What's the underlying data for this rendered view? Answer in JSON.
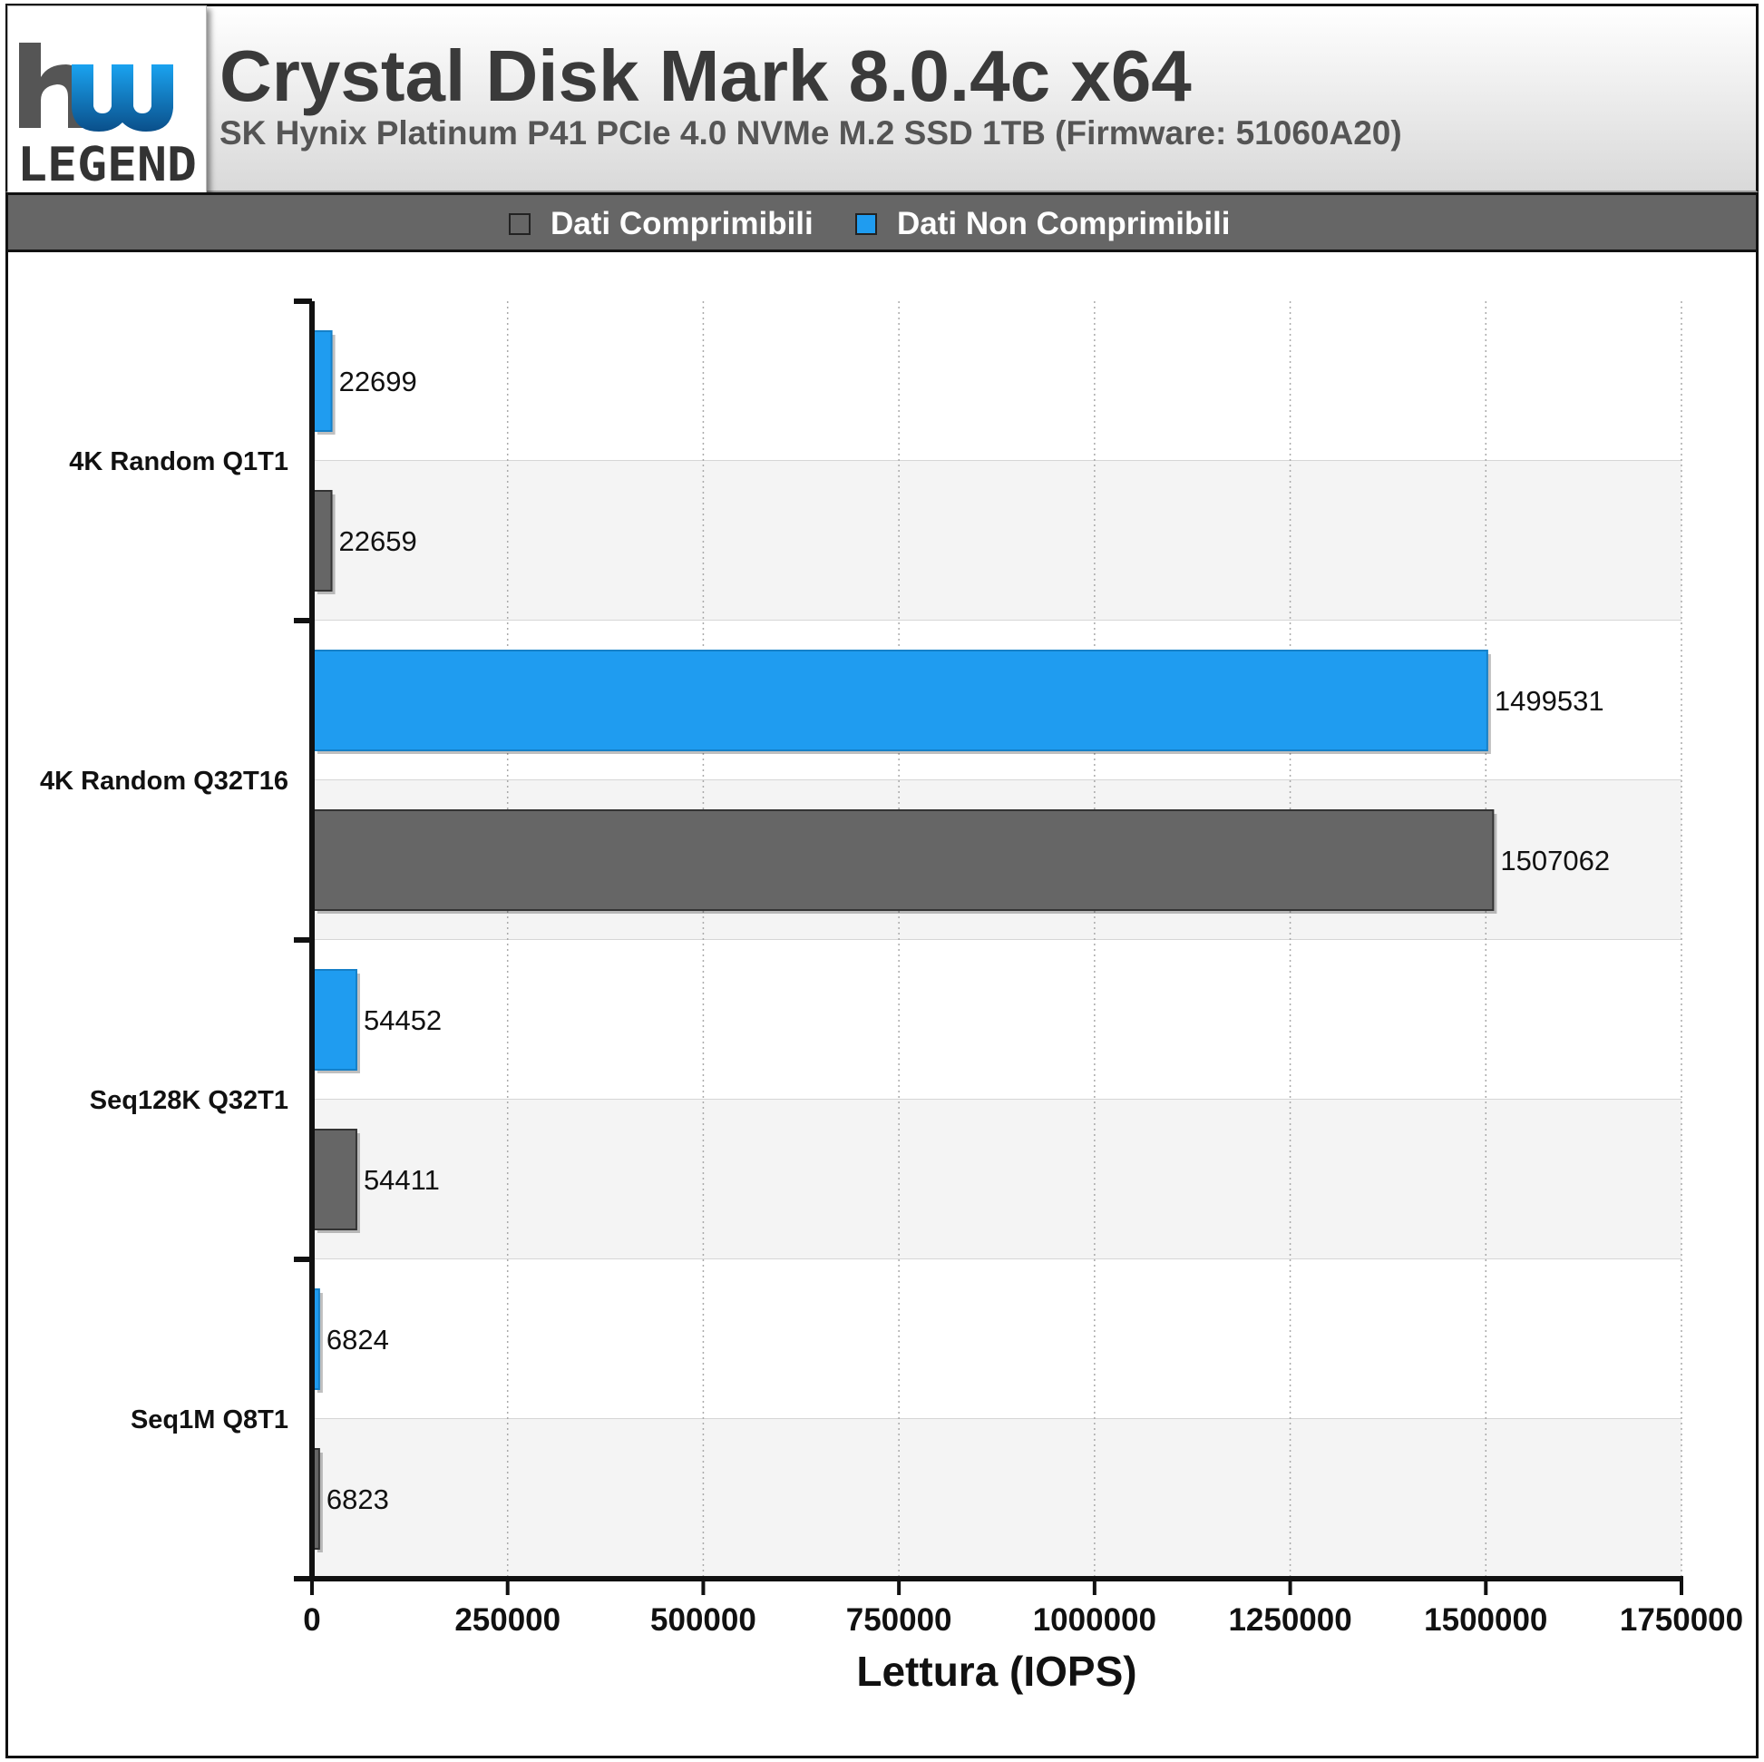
{
  "header": {
    "title": "Crystal Disk Mark 8.0.4c x64",
    "subtitle": "SK Hynix Platinum P41 PCIe 4.0 NVMe M.2 SSD 1TB (Firmware: 51060A20)",
    "logo_text": "LEGEND"
  },
  "legend": {
    "items": [
      {
        "label": "Dati Comprimibili",
        "color": "#666666"
      },
      {
        "label": "Dati Non Comprimibili",
        "color": "#1f9cf0"
      }
    ]
  },
  "chart_data": {
    "type": "bar",
    "orientation": "horizontal",
    "categories": [
      "4K Random Q1T1",
      "4K Random Q32T16",
      "Seq128K Q32T1",
      "Seq1M Q8T1"
    ],
    "series": [
      {
        "name": "Dati Non Comprimibili",
        "color": "#1f9cf0",
        "values": [
          22699,
          1499531,
          54452,
          6824
        ]
      },
      {
        "name": "Dati Comprimibili",
        "color": "#666666",
        "values": [
          22659,
          1507062,
          54411,
          6823
        ]
      }
    ],
    "xlabel": "Lettura (IOPS)",
    "xlim": [
      0,
      1750000
    ],
    "xticks": [
      0,
      250000,
      500000,
      750000,
      1000000,
      1250000,
      1500000,
      1750000
    ],
    "xtick_labels": [
      "0",
      "250000",
      "500000",
      "750000",
      "1000000",
      "1250000",
      "1500000",
      "1750000"
    ],
    "grid": true,
    "legend_position": "top"
  }
}
